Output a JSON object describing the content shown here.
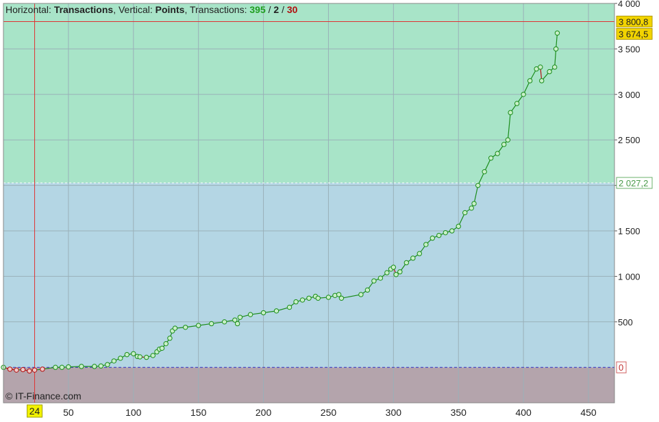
{
  "header": {
    "prefix": "Horizontal: ",
    "h_axis": "Transactions",
    "mid": ", Vertical: ",
    "v_axis": "Points",
    "tx_label": ", Transactions: ",
    "positive": "395",
    "sep1": " / ",
    "neutral": "2",
    "sep2": " / ",
    "negative": "30"
  },
  "watermark": "© IT-Finance.com",
  "colors": {
    "profit_zone": "#a8e4c8",
    "mid_zone": "#b4d6e4",
    "loss_zone": "#b4a4ac",
    "curve": "#1a8c1a",
    "marker_fill": "#c8f0c8",
    "drawdown": "#b01010",
    "crosshair": "#e03030",
    "grid": "#9ab0b8",
    "zero_line": "#3030c0"
  },
  "chart_data": {
    "type": "line",
    "xlabel": "",
    "ylabel": "",
    "xlim": [
      0,
      470
    ],
    "ylim": [
      -390,
      4000
    ],
    "x_ticks": [
      50,
      100,
      150,
      200,
      250,
      300,
      350,
      400,
      450
    ],
    "y_ticks": [
      500,
      1000,
      1500,
      2000,
      2500,
      3000,
      3500,
      4000
    ],
    "y_tick_labels": [
      "500",
      "1 000",
      "1 500",
      "",
      "2 500",
      "3 000",
      "3 500",
      "4 000"
    ],
    "grid": true,
    "levels": [
      {
        "value": 3800.8,
        "label": "3 800,8",
        "kind": "max"
      },
      {
        "value": 3674.5,
        "label": "3 674,5",
        "kind": "last"
      },
      {
        "value": 2027.2,
        "label": "2 027,2",
        "kind": "average"
      },
      {
        "value": 0,
        "label": "0",
        "kind": "zero"
      }
    ],
    "crosshair_x": 24,
    "crosshair_x_label": "24",
    "series": [
      {
        "x": [
          0,
          5,
          10,
          15,
          20,
          24,
          30,
          40,
          45,
          50,
          60,
          70,
          75,
          80,
          85,
          90,
          95,
          100,
          103,
          105,
          110,
          115,
          118,
          120,
          122,
          125,
          128,
          130,
          132,
          140,
          150,
          160,
          170,
          178,
          180,
          182,
          190,
          200,
          210,
          220,
          225,
          230,
          235,
          240,
          242,
          250,
          255,
          258,
          260,
          275,
          280,
          285,
          290,
          295,
          298,
          300,
          302,
          305,
          310,
          315,
          320,
          325,
          330,
          335,
          340,
          345,
          350,
          355,
          360,
          362,
          365,
          370,
          375,
          380,
          385,
          388,
          390,
          395,
          400,
          405,
          410,
          413,
          414,
          420,
          424,
          425,
          426
        ],
        "y": [
          0,
          -20,
          -30,
          -25,
          -40,
          -30,
          -20,
          0,
          0,
          5,
          10,
          10,
          15,
          30,
          70,
          100,
          140,
          150,
          120,
          115,
          110,
          130,
          170,
          200,
          210,
          260,
          320,
          400,
          430,
          440,
          460,
          480,
          500,
          520,
          480,
          550,
          580,
          600,
          620,
          660,
          720,
          740,
          760,
          780,
          760,
          770,
          790,
          800,
          760,
          800,
          850,
          950,
          980,
          1040,
          1080,
          1100,
          1020,
          1050,
          1150,
          1200,
          1250,
          1350,
          1420,
          1450,
          1480,
          1500,
          1550,
          1700,
          1750,
          1800,
          2000,
          2150,
          2300,
          2350,
          2450,
          2500,
          2800,
          2900,
          3000,
          3150,
          3280,
          3300,
          3150,
          3250,
          3300,
          3500,
          3674.5
        ]
      }
    ]
  }
}
